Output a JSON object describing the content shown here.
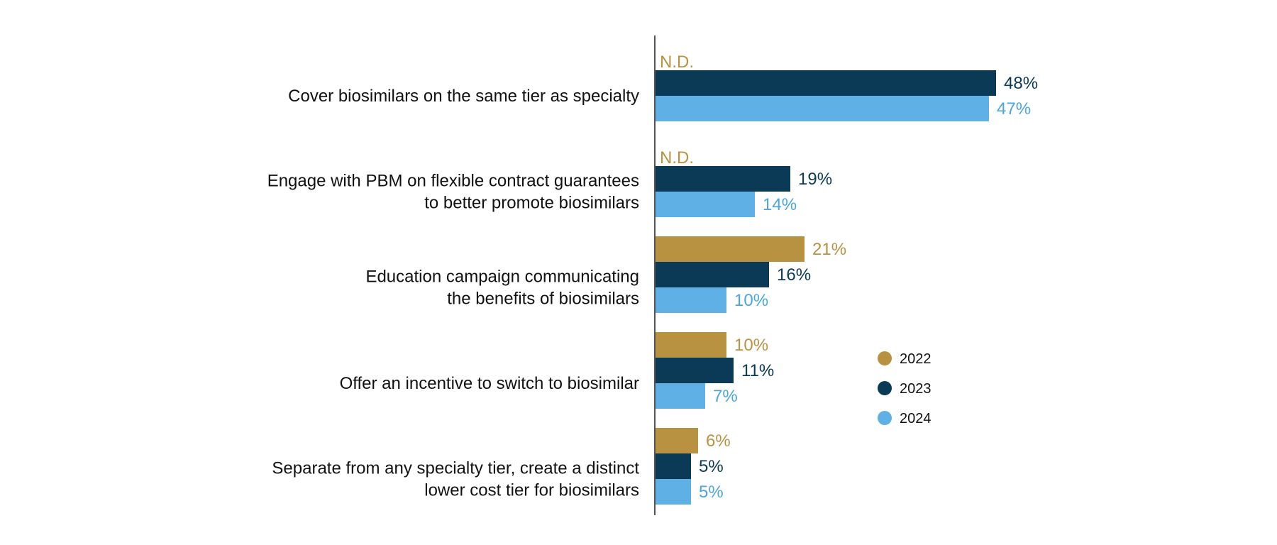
{
  "chart_data": {
    "type": "bar",
    "orientation": "horizontal",
    "categories": [
      [
        "Cover biosimilars on the same tier as specialty"
      ],
      [
        "Engage with PBM on flexible contract guarantees",
        "to better promote biosimilars"
      ],
      [
        "Education campaign communicating",
        "the benefits of biosimilars"
      ],
      [
        "Offer an incentive to switch to biosimilar"
      ],
      [
        "Separate from any specialty tier, create a distinct",
        "lower cost tier for biosimilars"
      ]
    ],
    "series": [
      {
        "name": "2022",
        "color": "#b89241",
        "values": [
          null,
          null,
          21,
          10,
          6
        ],
        "labels": [
          "N.D.",
          "N.D.",
          "21%",
          "10%",
          "6%"
        ]
      },
      {
        "name": "2023",
        "color": "#0b3a56",
        "values": [
          48,
          19,
          16,
          11,
          5
        ],
        "labels": [
          "48%",
          "19%",
          "16%",
          "11%",
          "5%"
        ]
      },
      {
        "name": "2024",
        "color": "#5eb0e5",
        "values": [
          47,
          14,
          10,
          7,
          5
        ],
        "labels": [
          "47%",
          "14%",
          "10%",
          "7%",
          "5%"
        ]
      }
    ],
    "value_unit": "%",
    "xlim": [
      0,
      100
    ],
    "grid": false,
    "legend_position": "right"
  }
}
